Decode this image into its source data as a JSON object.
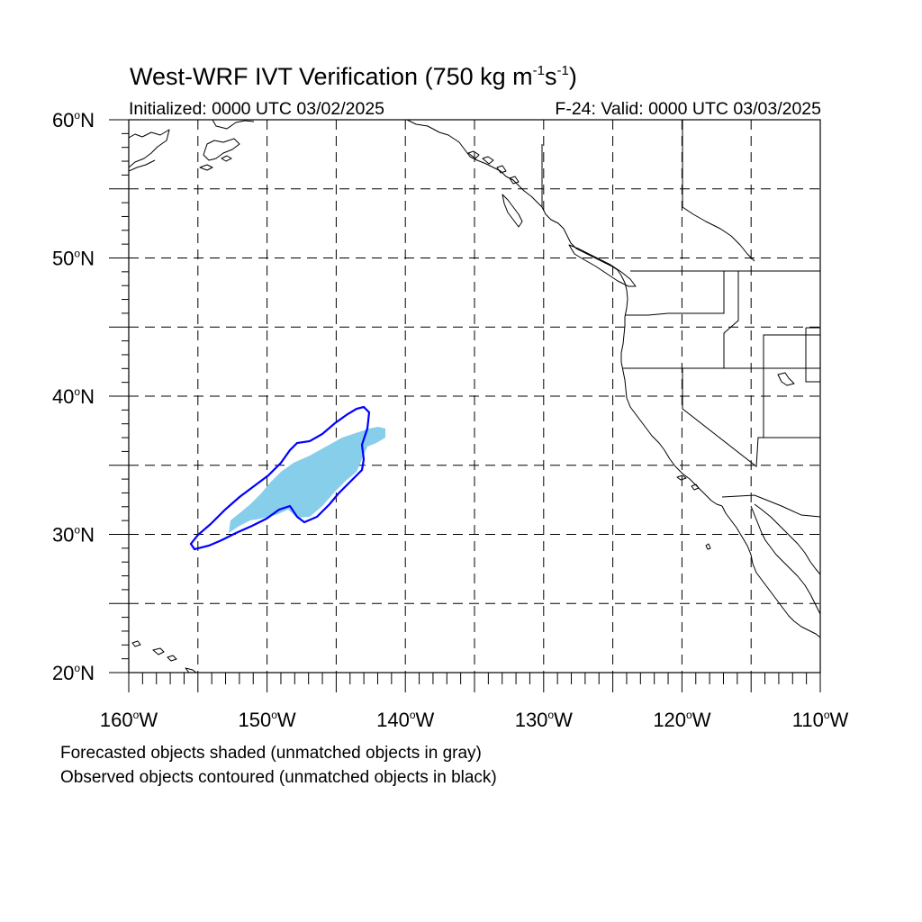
{
  "title": {
    "main": "West-WRF IVT Verification (750 kg m",
    "sup1": "-1",
    "mid": "s",
    "sup2": "-1",
    "end": ")"
  },
  "init_label": "Initialized: 0000 UTC 03/02/2025",
  "valid_label": "F-24: Valid: 0000 UTC 03/03/2025",
  "lat_ticks": [
    {
      "deg": 60,
      "label": "60",
      "suffix": "N"
    },
    {
      "deg": 50,
      "label": "50",
      "suffix": "N"
    },
    {
      "deg": 40,
      "label": "40",
      "suffix": "N"
    },
    {
      "deg": 30,
      "label": "30",
      "suffix": "N"
    },
    {
      "deg": 20,
      "label": "20",
      "suffix": "N"
    }
  ],
  "lon_ticks": [
    {
      "deg": -160,
      "label": "160",
      "suffix": "W"
    },
    {
      "deg": -150,
      "label": "150",
      "suffix": "W"
    },
    {
      "deg": -140,
      "label": "140",
      "suffix": "W"
    },
    {
      "deg": -130,
      "label": "130",
      "suffix": "W"
    },
    {
      "deg": -120,
      "label": "120",
      "suffix": "W"
    },
    {
      "deg": -110,
      "label": "110",
      "suffix": "W"
    }
  ],
  "colors": {
    "forecast_fill": "#87ceeb",
    "observed_contour": "#0000ff",
    "grid": "#000000"
  },
  "footnote1": "Forecasted objects shaded (unmatched objects in gray)",
  "footnote2": "Observed objects contoured (unmatched objects in black)"
}
